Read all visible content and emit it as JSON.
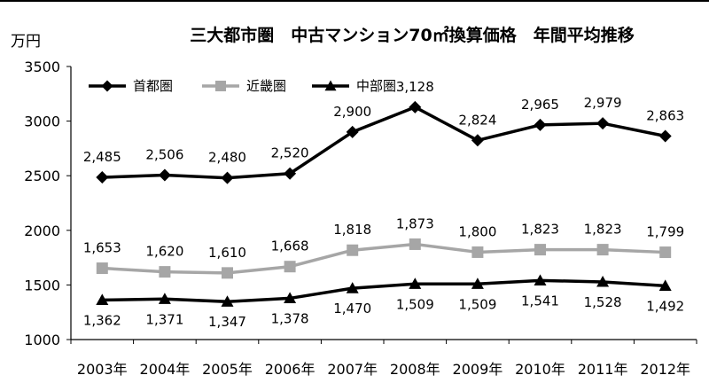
{
  "chart_data": {
    "type": "line",
    "title": "三大都市圏　中古マンション70㎡換算価格　年間平均推移",
    "ylabel": "万円",
    "xlabel": "",
    "ylim": [
      1000,
      3500
    ],
    "yticks": [
      1000,
      1500,
      2000,
      2500,
      3000,
      3500
    ],
    "grid": false,
    "legend_position": "top-left",
    "categories": [
      "2003年",
      "2004年",
      "2005年",
      "2006年",
      "2007年",
      "2008年",
      "2009年",
      "2010年",
      "2011年",
      "2012年"
    ],
    "series": [
      {
        "name": "首都圏",
        "color": "#000000",
        "marker": "diamond",
        "values": [
          2485,
          2506,
          2480,
          2520,
          2900,
          3128,
          2824,
          2965,
          2979,
          2863
        ],
        "labels": [
          "2,485",
          "2,506",
          "2,480",
          "2,520",
          "2,900",
          "3,128",
          "2,824",
          "2,965",
          "2,979",
          "2,863"
        ]
      },
      {
        "name": "近畿圏",
        "color": "#a6a6a6",
        "marker": "square",
        "values": [
          1653,
          1620,
          1610,
          1668,
          1818,
          1873,
          1800,
          1823,
          1823,
          1799
        ],
        "labels": [
          "1,653",
          "1,620",
          "1,610",
          "1,668",
          "1,818",
          "1,873",
          "1,800",
          "1,823",
          "1,823",
          "1,799"
        ]
      },
      {
        "name": "中部圏",
        "color": "#000000",
        "marker": "triangle",
        "values": [
          1362,
          1371,
          1347,
          1378,
          1470,
          1509,
          1509,
          1541,
          1528,
          1492
        ],
        "labels": [
          "1,362",
          "1,371",
          "1,347",
          "1,378",
          "1,470",
          "1,509",
          "1,509",
          "1,541",
          "1,528",
          "1,492"
        ]
      }
    ]
  }
}
